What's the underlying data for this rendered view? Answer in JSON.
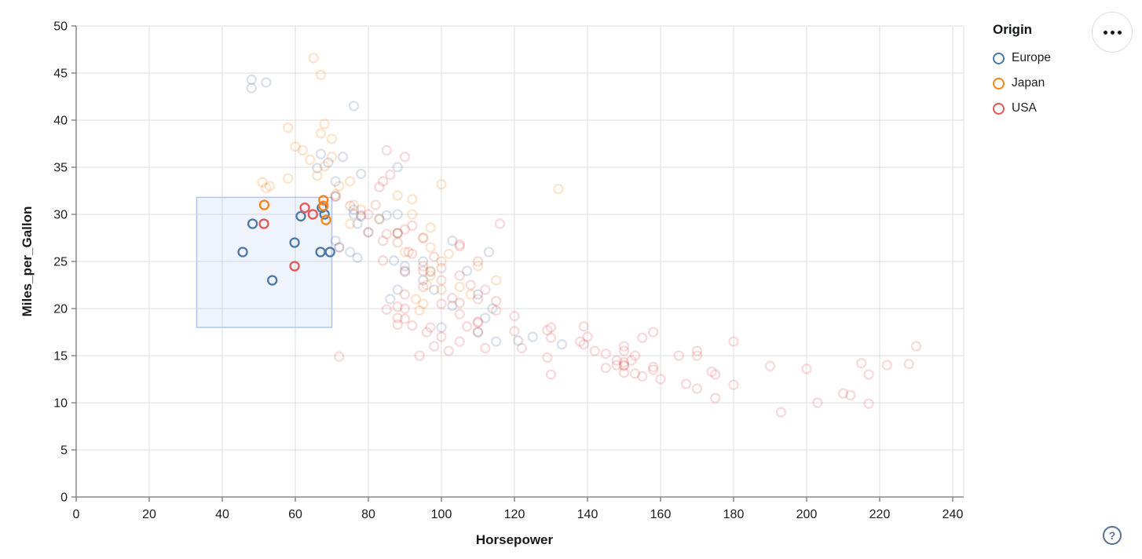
{
  "legend": {
    "title": "Origin",
    "items": [
      {
        "label": "Europe",
        "color": "#4c78a8"
      },
      {
        "label": "Japan",
        "color": "#f58518"
      },
      {
        "label": "USA",
        "color": "#e45756"
      }
    ]
  },
  "controls": {
    "menu_button": "ellipsis-menu",
    "help_label": "?"
  },
  "colors": {
    "europe": "#4c78a8",
    "japan": "#f58518",
    "usa": "#e45756",
    "grid": "#dddddd",
    "axis_domain": "#888888",
    "tick_label": "#1a1a1a",
    "brush_fill": "rgba(120,160,220,0.12)",
    "brush_stroke": "#b0c4ec"
  },
  "chart_data": {
    "type": "scatter",
    "title": "",
    "xlabel": "Horsepower",
    "ylabel": "Miles_per_Gallon",
    "xlim": [
      0,
      240
    ],
    "ylim": [
      0,
      50
    ],
    "x_ticks": [
      0,
      20,
      40,
      60,
      80,
      100,
      120,
      140,
      160,
      180,
      200,
      220,
      240
    ],
    "y_ticks": [
      0,
      5,
      10,
      15,
      20,
      25,
      30,
      35,
      40,
      45,
      50
    ],
    "grid": true,
    "legend_position": "top-right",
    "point_shape": "open-circle",
    "unselected_opacity": 0.22,
    "brush": {
      "x": [
        33,
        70
      ],
      "y": [
        18,
        31.8
      ]
    },
    "series": [
      {
        "name": "Europe",
        "color": "#4c78a8",
        "selected": [
          [
            48.3,
            29
          ],
          [
            45.6,
            26
          ],
          [
            53.7,
            23
          ],
          [
            59.8,
            27
          ],
          [
            61.5,
            29.8
          ],
          [
            66.9,
            26
          ],
          [
            69.5,
            26
          ],
          [
            67.3,
            30.7
          ],
          [
            68,
            30
          ]
        ],
        "unselected": [
          [
            48,
            43.4
          ],
          [
            52,
            44
          ],
          [
            48,
            44.3
          ],
          [
            76,
            41.5
          ],
          [
            67,
            36.4
          ],
          [
            69,
            35.5
          ],
          [
            73,
            36.1
          ],
          [
            78,
            34.3
          ],
          [
            71,
            33.5
          ],
          [
            66,
            34.9
          ],
          [
            71,
            31.9
          ],
          [
            76,
            30.5
          ],
          [
            76,
            30
          ],
          [
            83,
            29.5
          ],
          [
            77,
            29
          ],
          [
            80,
            28.1
          ],
          [
            88,
            28
          ],
          [
            71,
            27.2
          ],
          [
            72,
            26.5
          ],
          [
            75,
            26
          ],
          [
            77,
            25.4
          ],
          [
            95,
            25
          ],
          [
            90,
            24.5
          ],
          [
            90,
            24
          ],
          [
            95,
            23
          ],
          [
            98,
            22
          ],
          [
            110,
            21.5
          ],
          [
            86,
            21
          ],
          [
            103,
            20.3
          ],
          [
            87,
            25.1
          ],
          [
            103,
            27.2
          ],
          [
            88,
            30
          ],
          [
            78,
            29.8
          ],
          [
            107,
            24
          ],
          [
            113,
            26
          ],
          [
            114,
            20
          ],
          [
            112,
            19
          ],
          [
            100,
            18
          ],
          [
            125,
            17
          ],
          [
            133,
            16.2
          ],
          [
            115,
            16.5
          ],
          [
            110,
            17.5
          ],
          [
            88,
            22
          ],
          [
            97,
            23.9
          ],
          [
            121,
            16.6
          ],
          [
            85,
            29.9
          ],
          [
            88,
            35
          ]
        ]
      },
      {
        "name": "Japan",
        "color": "#f58518",
        "selected": [
          [
            51.5,
            31
          ],
          [
            67.7,
            31.5
          ],
          [
            67.7,
            30.9
          ],
          [
            68.4,
            29.4
          ]
        ],
        "unselected": [
          [
            65,
            46.6
          ],
          [
            67,
            44.8
          ],
          [
            68,
            39.6
          ],
          [
            58,
            39.2
          ],
          [
            67,
            38.6
          ],
          [
            60,
            37.2
          ],
          [
            62,
            36.8
          ],
          [
            64,
            35.8
          ],
          [
            70,
            36.1
          ],
          [
            68,
            35.1
          ],
          [
            66,
            34.1
          ],
          [
            52,
            32.8
          ],
          [
            51,
            33.4
          ],
          [
            58,
            33.8
          ],
          [
            132,
            32.7
          ],
          [
            100,
            33.2
          ],
          [
            88,
            32
          ],
          [
            92,
            31.6
          ],
          [
            76,
            31
          ],
          [
            78,
            30.5
          ],
          [
            92,
            30
          ],
          [
            83,
            29.5
          ],
          [
            75,
            29
          ],
          [
            97,
            28.6
          ],
          [
            88,
            28
          ],
          [
            95,
            27.5
          ],
          [
            71,
            32.1
          ],
          [
            97,
            26.5
          ],
          [
            90,
            26
          ],
          [
            102,
            25.8
          ],
          [
            100,
            25
          ],
          [
            110,
            24.5
          ],
          [
            97,
            24
          ],
          [
            97,
            23.5
          ],
          [
            115,
            23
          ],
          [
            96,
            22.5
          ],
          [
            100,
            22
          ],
          [
            108,
            21.5
          ],
          [
            93,
            21
          ],
          [
            95,
            20.5
          ],
          [
            75,
            33.5
          ],
          [
            70,
            38
          ],
          [
            53,
            33
          ],
          [
            94,
            19.8
          ],
          [
            105,
            22.3
          ],
          [
            72,
            33
          ]
        ]
      },
      {
        "name": "USA",
        "color": "#e45756",
        "selected": [
          [
            51.4,
            29
          ],
          [
            59.8,
            24.5
          ],
          [
            62.6,
            30.7
          ],
          [
            64.8,
            30
          ]
        ],
        "unselected": [
          [
            85,
            36.8
          ],
          [
            90,
            36.1
          ],
          [
            86,
            34.2
          ],
          [
            84,
            33.5
          ],
          [
            83,
            32.9
          ],
          [
            71,
            31.9
          ],
          [
            82,
            31
          ],
          [
            75,
            30.9
          ],
          [
            80,
            30
          ],
          [
            78,
            29.9
          ],
          [
            116,
            29
          ],
          [
            92,
            28.8
          ],
          [
            90,
            28.4
          ],
          [
            80,
            28.1
          ],
          [
            88,
            28
          ],
          [
            85,
            27.9
          ],
          [
            95,
            27.5
          ],
          [
            84,
            27.2
          ],
          [
            88,
            27
          ],
          [
            105,
            26.8
          ],
          [
            105,
            26.6
          ],
          [
            72,
            26.5
          ],
          [
            91,
            26
          ],
          [
            92,
            25.8
          ],
          [
            98,
            25.5
          ],
          [
            84,
            25.1
          ],
          [
            110,
            25
          ],
          [
            95,
            24.5
          ],
          [
            100,
            24.3
          ],
          [
            95,
            24
          ],
          [
            90,
            23.9
          ],
          [
            105,
            23.5
          ],
          [
            100,
            23
          ],
          [
            108,
            22.5
          ],
          [
            95,
            22.3
          ],
          [
            112,
            22
          ],
          [
            90,
            21.5
          ],
          [
            103,
            21.1
          ],
          [
            110,
            21
          ],
          [
            115,
            20.8
          ],
          [
            105,
            20.6
          ],
          [
            100,
            20.5
          ],
          [
            88,
            20.2
          ],
          [
            90,
            20
          ],
          [
            85,
            19.9
          ],
          [
            115,
            19.8
          ],
          [
            105,
            19.4
          ],
          [
            120,
            19.2
          ],
          [
            88,
            19
          ],
          [
            90,
            18.9
          ],
          [
            110,
            18.6
          ],
          [
            110,
            18.5
          ],
          [
            92,
            18.2
          ],
          [
            107,
            18.1
          ],
          [
            130,
            18
          ],
          [
            129,
            17.7
          ],
          [
            120,
            17.6
          ],
          [
            110,
            17.5
          ],
          [
            140,
            17
          ],
          [
            130,
            16.9
          ],
          [
            138,
            16.5
          ],
          [
            139,
            16.2
          ],
          [
            150,
            16
          ],
          [
            122,
            15.8
          ],
          [
            142,
            15.5
          ],
          [
            145,
            15.2
          ],
          [
            165,
            15
          ],
          [
            170,
            15
          ],
          [
            72,
            14.9
          ],
          [
            129,
            14.8
          ],
          [
            152,
            14.5
          ],
          [
            150,
            14.3
          ],
          [
            148,
            14
          ],
          [
            150,
            13.9
          ],
          [
            158,
            13.8
          ],
          [
            145,
            13.7
          ],
          [
            158,
            13.5
          ],
          [
            174,
            13.3
          ],
          [
            150,
            13.2
          ],
          [
            153,
            13.1
          ],
          [
            130,
            13
          ],
          [
            175,
            13
          ],
          [
            155,
            12.8
          ],
          [
            160,
            12.5
          ],
          [
            167,
            12
          ],
          [
            180,
            11.9
          ],
          [
            170,
            11.5
          ],
          [
            210,
            11
          ],
          [
            212,
            10.8
          ],
          [
            175,
            10.5
          ],
          [
            203,
            10
          ],
          [
            217,
            9.9
          ],
          [
            193,
            9
          ],
          [
            139,
            18.1
          ],
          [
            158,
            17.5
          ],
          [
            155,
            16.9
          ],
          [
            180,
            16.5
          ],
          [
            230,
            16
          ],
          [
            170,
            15.5
          ],
          [
            153,
            15
          ],
          [
            148,
            14.5
          ],
          [
            215,
            14.2
          ],
          [
            228,
            14.1
          ],
          [
            222,
            14
          ],
          [
            190,
            13.9
          ],
          [
            200,
            13.6
          ],
          [
            217,
            13
          ],
          [
            150,
            15.5
          ],
          [
            150,
            14
          ],
          [
            98,
            16
          ],
          [
            102,
            15.5
          ],
          [
            94,
            15
          ],
          [
            105,
            16.5
          ],
          [
            112,
            15.8
          ],
          [
            88,
            18.3
          ],
          [
            97,
            18
          ],
          [
            96,
            17.5
          ],
          [
            100,
            17
          ]
        ]
      }
    ]
  }
}
